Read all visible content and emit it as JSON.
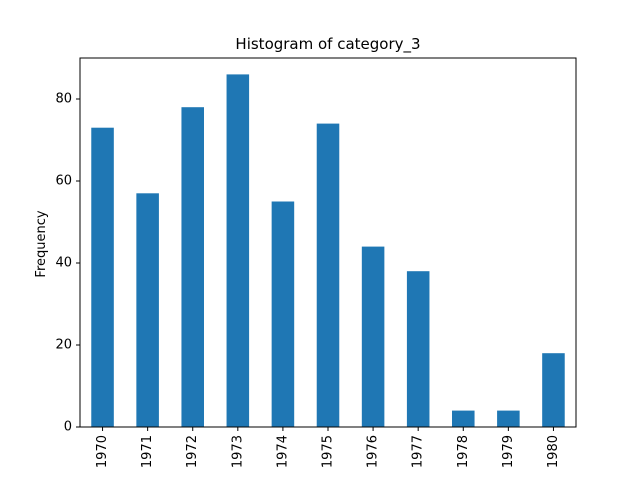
{
  "chart_data": {
    "type": "bar",
    "title": "Histogram of category_3",
    "xlabel": "",
    "ylabel": "Frequency",
    "categories": [
      "1970",
      "1971",
      "1972",
      "1973",
      "1974",
      "1975",
      "1976",
      "1977",
      "1978",
      "1979",
      "1980"
    ],
    "values": [
      73,
      57,
      78,
      86,
      55,
      74,
      44,
      38,
      4,
      4,
      18
    ],
    "ylim": [
      0,
      90
    ],
    "yticks": [
      "0",
      "20",
      "40",
      "60",
      "80"
    ],
    "bar_color": "#1f77b4",
    "grid": false,
    "legend": "none"
  }
}
